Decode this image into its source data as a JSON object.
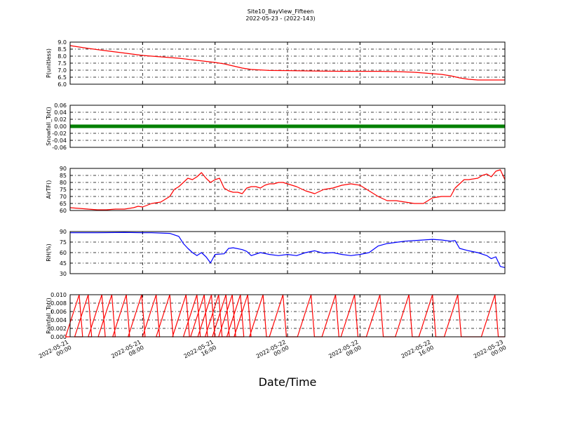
{
  "title": {
    "line1": "Site10_BayView_Fifteen",
    "line2": "2022-05-23 - (2022-143)"
  },
  "chart_data": {
    "xlabel": "Date/Time",
    "x_ticks": [
      {
        "t": 0,
        "line1": "2022-05-21",
        "line2": "00:00"
      },
      {
        "t": 8,
        "line1": "2022-05-21",
        "line2": "08:00"
      },
      {
        "t": 16,
        "line1": "2022-05-21",
        "line2": "16:00"
      },
      {
        "t": 24,
        "line1": "2022-05-22",
        "line2": "00:00"
      },
      {
        "t": 32,
        "line1": "2022-05-22",
        "line2": "08:00"
      },
      {
        "t": 40,
        "line1": "2022-05-22",
        "line2": "16:00"
      },
      {
        "t": 48,
        "line1": "2022-05-23",
        "line2": "00:00"
      }
    ],
    "xlim": [
      0,
      48
    ],
    "panels": [
      {
        "id": "pressure",
        "type": "line",
        "ylabel": "P(unitless)",
        "ylim": [
          6.0,
          9.0
        ],
        "yticks": [
          "6.0",
          "6.5",
          "7.0",
          "7.5",
          "8.0",
          "8.5",
          "9.0"
        ],
        "color": "#ff0000",
        "points": [
          [
            0,
            8.75
          ],
          [
            2,
            8.55
          ],
          [
            4,
            8.38
          ],
          [
            6,
            8.22
          ],
          [
            8,
            8.05
          ],
          [
            10,
            7.95
          ],
          [
            12,
            7.85
          ],
          [
            14,
            7.7
          ],
          [
            16,
            7.55
          ],
          [
            17,
            7.45
          ],
          [
            18,
            7.3
          ],
          [
            19,
            7.15
          ],
          [
            20,
            7.05
          ],
          [
            22,
            6.98
          ],
          [
            24,
            6.97
          ],
          [
            26,
            6.95
          ],
          [
            28,
            6.93
          ],
          [
            30,
            6.92
          ],
          [
            32,
            6.92
          ],
          [
            34,
            6.92
          ],
          [
            36,
            6.9
          ],
          [
            38,
            6.85
          ],
          [
            40,
            6.75
          ],
          [
            41,
            6.7
          ],
          [
            42,
            6.6
          ],
          [
            43,
            6.45
          ],
          [
            44,
            6.35
          ],
          [
            45,
            6.3
          ],
          [
            46,
            6.3
          ],
          [
            48,
            6.3
          ]
        ]
      },
      {
        "id": "snowfall",
        "type": "line",
        "ylabel": "Snowfall_Tot()",
        "ylim": [
          -0.06,
          0.06
        ],
        "yticks": [
          "-0.06",
          "-0.04",
          "-0.02",
          "0.00",
          "0.02",
          "0.04",
          "0.06"
        ],
        "color": "#008000",
        "points": [
          [
            0,
            0
          ],
          [
            48,
            0
          ]
        ]
      },
      {
        "id": "airtemp",
        "type": "line",
        "ylabel": "AirTF()",
        "ylim": [
          60,
          90
        ],
        "yticks": [
          "60",
          "65",
          "70",
          "75",
          "80",
          "85",
          "90"
        ],
        "color": "#ff0000",
        "points": [
          [
            0,
            62
          ],
          [
            1,
            61.5
          ],
          [
            2,
            61
          ],
          [
            3,
            60.5
          ],
          [
            4,
            60.5
          ],
          [
            5,
            61
          ],
          [
            6,
            61
          ],
          [
            7,
            62
          ],
          [
            7.5,
            63
          ],
          [
            8,
            62.5
          ],
          [
            9,
            65
          ],
          [
            10,
            66
          ],
          [
            11,
            70
          ],
          [
            11.5,
            75
          ],
          [
            12,
            77
          ],
          [
            12.5,
            80
          ],
          [
            13,
            83
          ],
          [
            13.5,
            82
          ],
          [
            14,
            84
          ],
          [
            14.5,
            87
          ],
          [
            15,
            83
          ],
          [
            15.5,
            80
          ],
          [
            16,
            82
          ],
          [
            16.5,
            83
          ],
          [
            17,
            76
          ],
          [
            17.5,
            74
          ],
          [
            18,
            73
          ],
          [
            18.5,
            73
          ],
          [
            19,
            72
          ],
          [
            19.5,
            76
          ],
          [
            20,
            77
          ],
          [
            20.5,
            77
          ],
          [
            21,
            76
          ],
          [
            21.5,
            78
          ],
          [
            22,
            79
          ],
          [
            22.5,
            79
          ],
          [
            23,
            80
          ],
          [
            23.5,
            80
          ],
          [
            24,
            79
          ],
          [
            25,
            77
          ],
          [
            26,
            74
          ],
          [
            27,
            72
          ],
          [
            28,
            75
          ],
          [
            29,
            76
          ],
          [
            30,
            78
          ],
          [
            31,
            79
          ],
          [
            32,
            78
          ],
          [
            33,
            74
          ],
          [
            34,
            70
          ],
          [
            35,
            67
          ],
          [
            36,
            67
          ],
          [
            37,
            66
          ],
          [
            38,
            65
          ],
          [
            39,
            65
          ],
          [
            40,
            69
          ],
          [
            41,
            70
          ],
          [
            42,
            70
          ],
          [
            42.5,
            76
          ],
          [
            43,
            79
          ],
          [
            43.5,
            82
          ],
          [
            44,
            82
          ],
          [
            45,
            83
          ],
          [
            45.5,
            85
          ],
          [
            46,
            86
          ],
          [
            46.5,
            84
          ],
          [
            47,
            88
          ],
          [
            47.5,
            89
          ],
          [
            48,
            82
          ]
        ]
      },
      {
        "id": "rh",
        "type": "line",
        "ylabel": "RH(%)",
        "ylim": [
          30,
          100
        ],
        "yticks": [
          "30",
          "45",
          "60",
          "75",
          "90"
        ],
        "color": "#0000ff",
        "points": [
          [
            0,
            98
          ],
          [
            3,
            98
          ],
          [
            6,
            98.5
          ],
          [
            8,
            98
          ],
          [
            9,
            98
          ],
          [
            11,
            97
          ],
          [
            12,
            92
          ],
          [
            12.5,
            80
          ],
          [
            13,
            72
          ],
          [
            13.5,
            65
          ],
          [
            14,
            60
          ],
          [
            14.5,
            65
          ],
          [
            15,
            58
          ],
          [
            15.5,
            48
          ],
          [
            16,
            62
          ],
          [
            17,
            63
          ],
          [
            17.5,
            72
          ],
          [
            18,
            73
          ],
          [
            19,
            70
          ],
          [
            19.5,
            67
          ],
          [
            20,
            60
          ],
          [
            21,
            65
          ],
          [
            22,
            62
          ],
          [
            23,
            60
          ],
          [
            24,
            62
          ],
          [
            25,
            60
          ],
          [
            26,
            65
          ],
          [
            27,
            68
          ],
          [
            28,
            64
          ],
          [
            29,
            65
          ],
          [
            30,
            62
          ],
          [
            31,
            60
          ],
          [
            32,
            62
          ],
          [
            33,
            65
          ],
          [
            34,
            76
          ],
          [
            35,
            80
          ],
          [
            36,
            82
          ],
          [
            37,
            84
          ],
          [
            38,
            85
          ],
          [
            39,
            86
          ],
          [
            40,
            87
          ],
          [
            41,
            86
          ],
          [
            42,
            84
          ],
          [
            42.5,
            85
          ],
          [
            43,
            72
          ],
          [
            44,
            68
          ],
          [
            45,
            65
          ],
          [
            46,
            60
          ],
          [
            46.5,
            55
          ],
          [
            47,
            58
          ],
          [
            47.5,
            42
          ],
          [
            48,
            40
          ]
        ]
      },
      {
        "id": "rainfall",
        "type": "line",
        "ylabel": "Rainfall_Tot()",
        "ylim": [
          0.0,
          0.01
        ],
        "yticks": [
          "0.000",
          "0.002",
          "0.004",
          "0.006",
          "0.008",
          "0.010"
        ],
        "color": "#ff0000",
        "spikes": [
          1.0,
          2.0,
          3.5,
          4.6,
          6.2,
          7.9,
          9.5,
          11.0,
          12.8,
          14.0,
          14.8,
          15.6,
          16.4,
          17.2,
          17.9,
          18.8,
          19.6,
          21.3,
          23.5,
          26.6,
          29.3,
          31.4,
          34.2,
          37.4,
          40.0,
          42.8,
          46.9
        ]
      }
    ]
  }
}
